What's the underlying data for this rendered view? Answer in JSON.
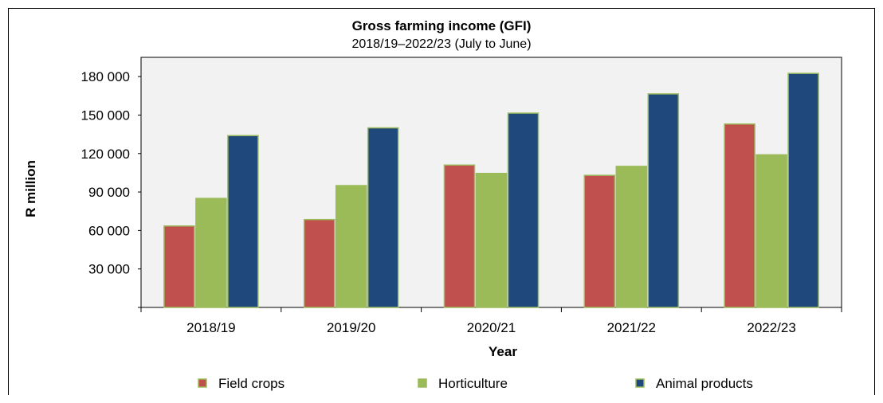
{
  "chart_data": {
    "type": "bar",
    "title": "Gross farming income (GFI)",
    "subtitle": "2018/19–2022/23 (July to June)",
    "xlabel": "Year",
    "ylabel": "R million",
    "categories": [
      "2018/19",
      "2019/20",
      "2020/21",
      "2021/22",
      "2022/23"
    ],
    "series": [
      {
        "name": "Field crops",
        "values": [
          63500,
          68500,
          111000,
          103000,
          143000
        ]
      },
      {
        "name": "Horticulture",
        "values": [
          85000,
          95000,
          104500,
          110000,
          119000
        ]
      },
      {
        "name": "Animal products",
        "values": [
          134000,
          140000,
          151500,
          166500,
          182500
        ]
      }
    ],
    "ylim": [
      0,
      195000
    ],
    "yticks": [
      30000,
      60000,
      90000,
      120000,
      150000,
      180000
    ],
    "ytick_labels": [
      "30 000",
      "60 000",
      "90 000",
      "120 000",
      "150 000",
      "180 000"
    ],
    "grid": false,
    "legend_position": "bottom",
    "colors": {
      "Field crops": "#c0504d",
      "Horticulture": "#9bbb59",
      "Animal products": "#1f497d",
      "bar_outline": "#9bbb59",
      "plot_background": "#f2f2f2"
    }
  }
}
